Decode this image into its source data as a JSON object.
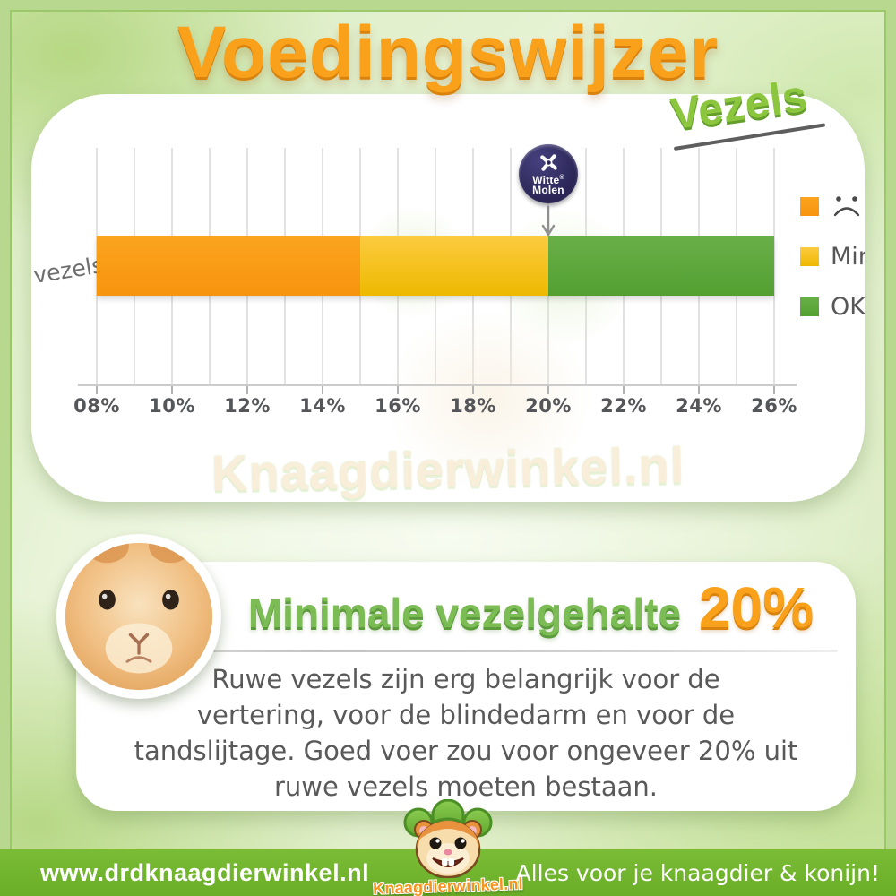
{
  "title": {
    "main": "Voedingswijzer",
    "sub": "Vezels"
  },
  "chart_data": {
    "type": "bar",
    "orientation": "horizontal",
    "title": "Voedingswijzer Vezels",
    "ylabel": "vezels",
    "categories": [
      "vezels"
    ],
    "xlim": [
      8,
      26
    ],
    "x_unit": "%",
    "gridline_step": 1,
    "grid": true,
    "legend_position": "right",
    "x_tick_values": [
      8,
      10,
      12,
      14,
      16,
      18,
      20,
      22,
      24,
      26
    ],
    "x_tick_labels": [
      "08%",
      "10%",
      "12%",
      "14%",
      "16%",
      "18%",
      "20%",
      "22%",
      "24%",
      "26%"
    ],
    "series": [
      {
        "name": "te-laag",
        "label": "",
        "legend_icon": "sad-face-icon",
        "range_pct": [
          8,
          15
        ],
        "color_top": "#FBA41E",
        "color_bottom": "#F8940E"
      },
      {
        "name": "min",
        "label": "Min",
        "legend_icon": "swatch",
        "range_pct": [
          15,
          20
        ],
        "color_top": "#FCCB40",
        "color_bottom": "#EEB900"
      },
      {
        "name": "ok",
        "label": "OK",
        "legend_icon": "swatch",
        "range_pct": [
          20,
          26
        ],
        "color_top": "#69AF48",
        "color_bottom": "#53A031"
      }
    ],
    "marker": {
      "brand": "Witte Molen",
      "value_pct": 20
    }
  },
  "badge": {
    "line1": "Witte",
    "reg": "®",
    "line2": "Molen"
  },
  "watermark": "Knaagdierwinkel.nl",
  "info": {
    "heading": "Minimale vezelgehalte",
    "value": "20%",
    "lines": [
      "Ruwe vezels zijn erg belangrijk voor de",
      "vertering, voor de blindedarm en voor de",
      "tandslijtage. Goed voer zou voor ongeveer 20% uit",
      "ruwe vezels moeten bestaan."
    ]
  },
  "footer": {
    "website": "www.drdknaagdierwinkel.nl",
    "logo_text": "Knaagdierwinkel.nl",
    "tagline": "Alles voor je knaagdier & konijn!"
  },
  "colors": {
    "orange": "#F9A01B",
    "yellow": "#F5BF13",
    "green": "#5DA738",
    "footer_green": "#72B52E",
    "badge_navy": "#2B2656",
    "title_orange": "#F9A11B",
    "subtitle_green": "#8CC63F"
  }
}
